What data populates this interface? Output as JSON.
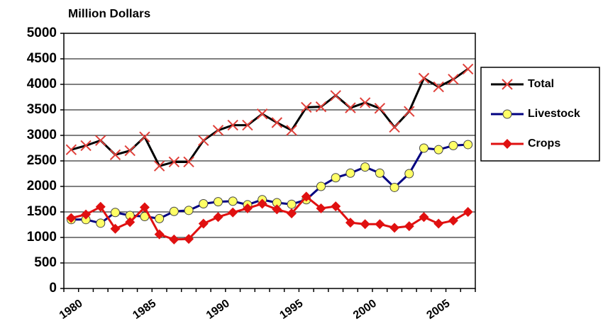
{
  "chart_data": {
    "type": "line",
    "title": "Million Dollars",
    "categories": [
      "1980",
      null,
      null,
      null,
      null,
      "1985",
      null,
      null,
      null,
      null,
      "1990",
      null,
      null,
      null,
      null,
      "1995",
      null,
      null,
      null,
      null,
      "2000",
      null,
      null,
      null,
      null,
      "2005",
      null,
      null
    ],
    "series": [
      {
        "name": "Total",
        "color": "#000000",
        "marker_color": "#e0403a",
        "marker": "x",
        "values": [
          2720,
          2800,
          2900,
          2620,
          2700,
          2970,
          2400,
          2480,
          2480,
          2900,
          3100,
          3200,
          3200,
          3420,
          3250,
          3100,
          3550,
          3560,
          3780,
          3540,
          3640,
          3530,
          3160,
          3470,
          4120,
          3950,
          4100,
          4300
        ]
      },
      {
        "name": "Livestock",
        "color": "#000080",
        "marker_color": "#ffff66",
        "marker": "circle",
        "values": [
          1350,
          1350,
          1280,
          1490,
          1430,
          1410,
          1370,
          1510,
          1530,
          1660,
          1700,
          1710,
          1640,
          1740,
          1680,
          1650,
          1740,
          2000,
          2170,
          2260,
          2380,
          2260,
          1980,
          2250,
          2750,
          2720,
          2800,
          2820
        ]
      },
      {
        "name": "Crops",
        "color": "#e01010",
        "marker_color": "#e01010",
        "marker": "diamond",
        "values": [
          1380,
          1450,
          1600,
          1170,
          1300,
          1590,
          1060,
          960,
          970,
          1270,
          1400,
          1490,
          1570,
          1660,
          1550,
          1470,
          1800,
          1570,
          1610,
          1290,
          1260,
          1260,
          1190,
          1220,
          1400,
          1270,
          1330,
          1500
        ]
      }
    ],
    "ylim": [
      0,
      5000
    ],
    "yticks": [
      0,
      500,
      1000,
      1500,
      2000,
      2500,
      3000,
      3500,
      4000,
      4500,
      5000
    ],
    "grid": true,
    "legend": "right"
  }
}
